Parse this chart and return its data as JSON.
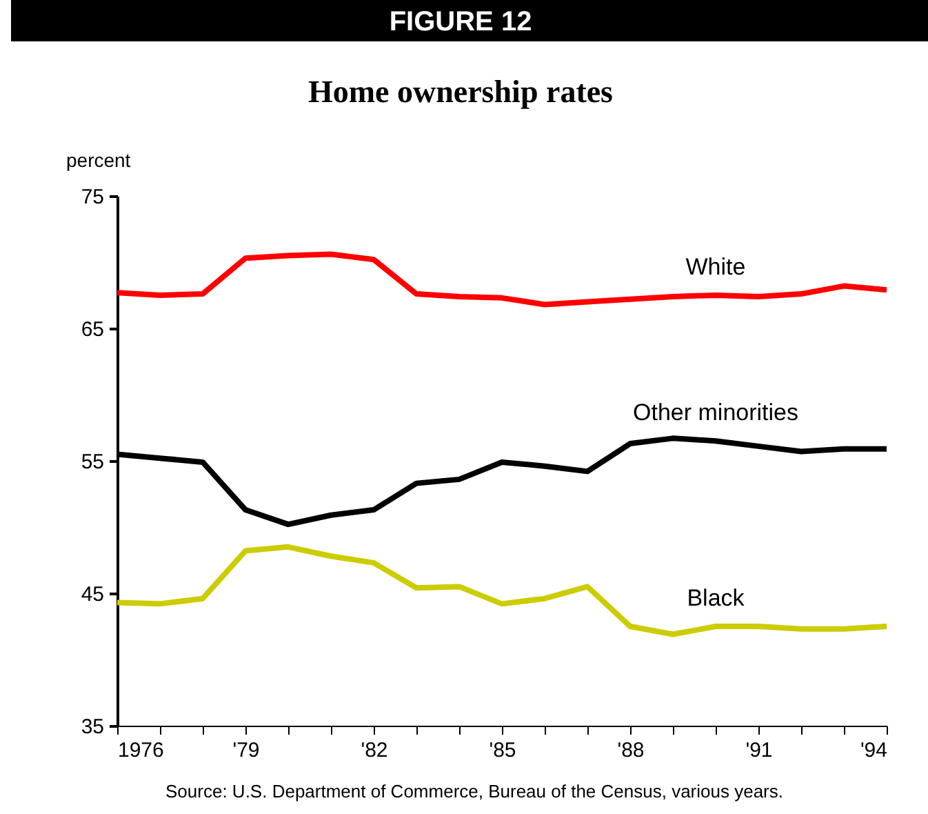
{
  "chart_data": {
    "type": "line",
    "title": "Home ownership rates",
    "ylabel": "percent",
    "annotations": [
      "FIGURE 12",
      "Source: U.S. Department of Commerce, Bureau of the Census, various years."
    ],
    "x": [
      1976,
      1977,
      1978,
      1979,
      1980,
      1981,
      1982,
      1983,
      1984,
      1985,
      1986,
      1987,
      1988,
      1989,
      1990,
      1991,
      1992,
      1993,
      1994
    ],
    "series": [
      {
        "name": "White",
        "color": "#ff0000",
        "values": [
          67.7,
          67.5,
          67.6,
          70.3,
          70.5,
          70.6,
          70.2,
          67.6,
          67.4,
          67.3,
          66.8,
          67.0,
          67.2,
          67.4,
          67.5,
          67.4,
          67.6,
          68.2,
          67.9
        ]
      },
      {
        "name": "Other minorities",
        "color": "#000000",
        "values": [
          55.5,
          55.2,
          54.9,
          51.3,
          50.2,
          50.9,
          51.3,
          53.3,
          53.6,
          54.9,
          54.6,
          54.2,
          56.3,
          56.7,
          56.5,
          56.1,
          55.7,
          55.9,
          55.9
        ]
      },
      {
        "name": "Black",
        "color": "#cccc00",
        "values": [
          44.3,
          44.2,
          44.6,
          48.2,
          48.5,
          47.8,
          47.3,
          45.4,
          45.5,
          44.2,
          44.6,
          45.5,
          42.5,
          41.9,
          42.5,
          42.5,
          42.3,
          42.3,
          42.5
        ]
      }
    ],
    "xlim": [
      1976,
      1994
    ],
    "xticks": [
      1976,
      {
        "value": 1977,
        "label": null
      },
      {
        "value": 1978,
        "label": null
      },
      {
        "value": 1979,
        "label": "'79"
      },
      {
        "value": 1980,
        "label": null
      },
      {
        "value": 1981,
        "label": null
      },
      {
        "value": 1982,
        "label": "'82"
      },
      {
        "value": 1983,
        "label": null
      },
      {
        "value": 1984,
        "label": null
      },
      {
        "value": 1985,
        "label": "'85"
      },
      {
        "value": 1986,
        "label": null
      },
      {
        "value": 1987,
        "label": null
      },
      {
        "value": 1988,
        "label": "'88"
      },
      {
        "value": 1989,
        "label": null
      },
      {
        "value": 1990,
        "label": null
      },
      {
        "value": 1991,
        "label": "'91"
      },
      {
        "value": 1992,
        "label": null
      },
      {
        "value": 1993,
        "label": null
      },
      {
        "value": 1994,
        "label": "'94"
      }
    ],
    "ylim": [
      35,
      75
    ],
    "yticks": [
      35,
      45,
      55,
      65,
      75
    ],
    "grid": false,
    "legend": false,
    "marker": "none",
    "line_style": "solid"
  }
}
